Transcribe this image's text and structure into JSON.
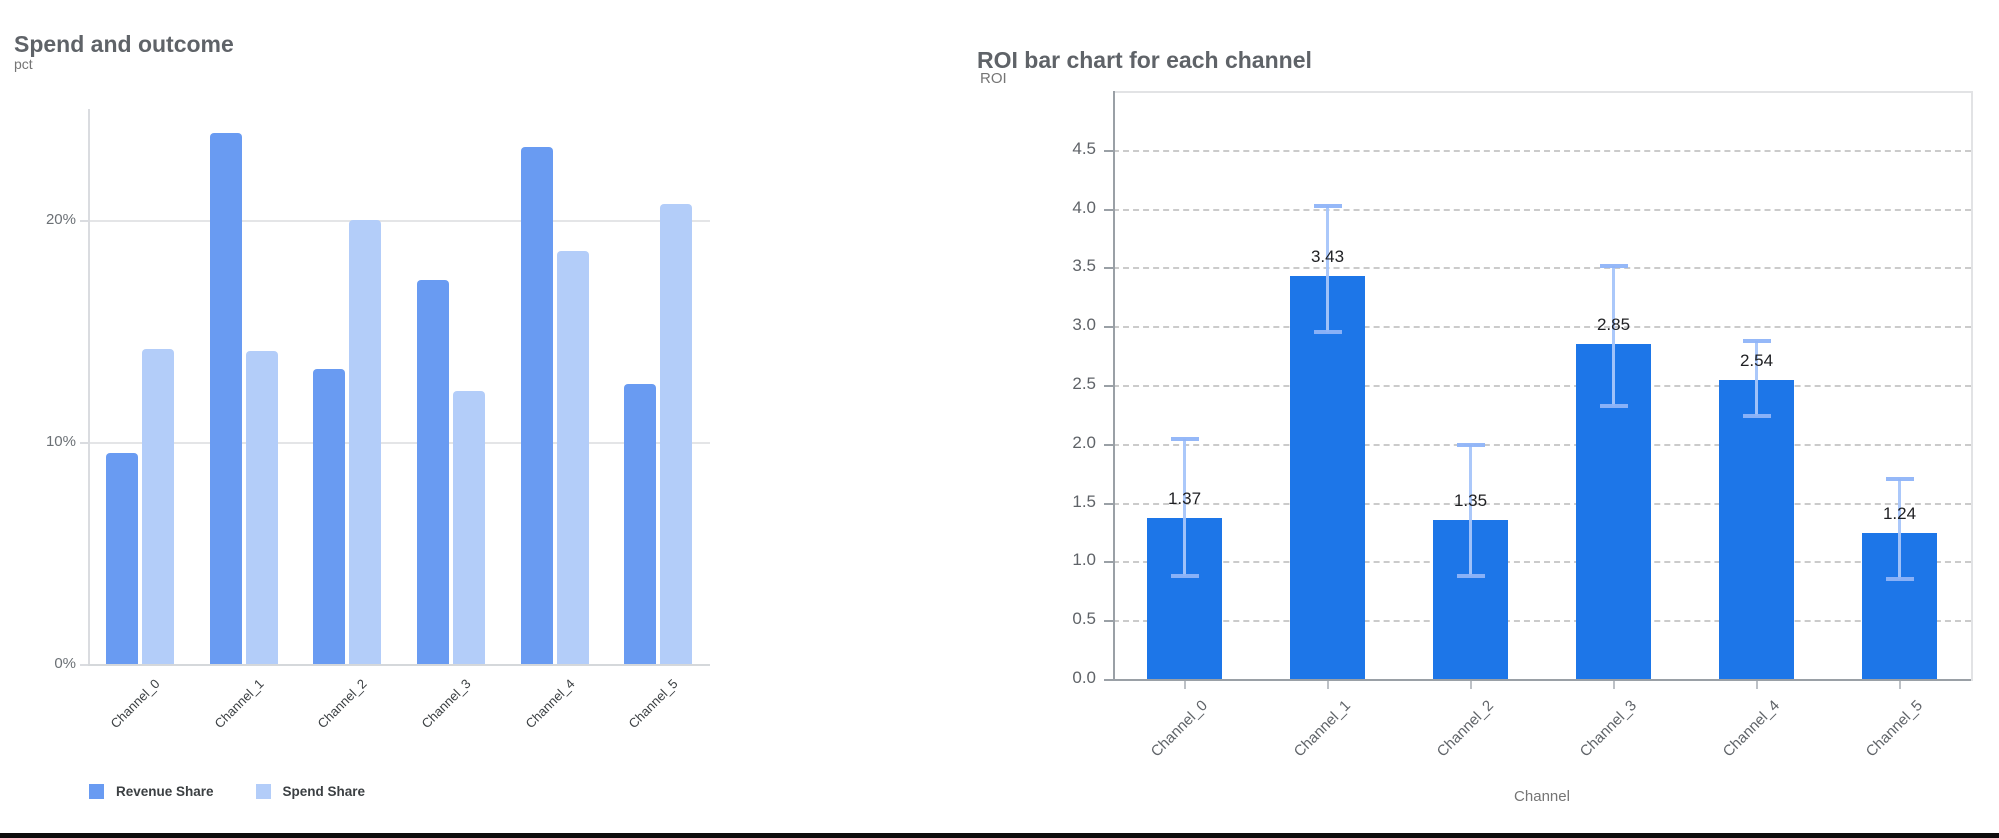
{
  "chart_data": [
    {
      "type": "bar",
      "title": "Spend and outcome",
      "ylabel": "pct",
      "xlabel": "",
      "categories": [
        "Channel_0",
        "Channel_1",
        "Channel_2",
        "Channel_3",
        "Channel_4",
        "Channel_5"
      ],
      "series": [
        {
          "name": "Revenue Share",
          "color": "#699bf2",
          "values": [
            9.5,
            23.9,
            13.3,
            17.3,
            23.3,
            12.6
          ]
        },
        {
          "name": "Spend Share",
          "color": "#b3cdf9",
          "values": [
            14.2,
            14.1,
            20.0,
            12.3,
            18.6,
            20.7
          ]
        }
      ],
      "ylim": [
        0,
        25
      ],
      "ytick_values": [
        0,
        10,
        20
      ],
      "ytick_labels": [
        "0%",
        "10%",
        "20%"
      ],
      "grid": "horizontal-solid",
      "legend_position": "bottom-left"
    },
    {
      "type": "bar",
      "title": "ROI bar chart for each channel",
      "ylabel": "ROI",
      "xlabel": "Channel",
      "categories": [
        "Channel_0",
        "Channel_1",
        "Channel_2",
        "Channel_3",
        "Channel_4",
        "Channel_5"
      ],
      "values": [
        1.37,
        3.43,
        1.35,
        2.85,
        2.54,
        1.24
      ],
      "value_labels": [
        "1.37",
        "3.43",
        "1.35",
        "2.85",
        "2.54",
        "1.24"
      ],
      "error_low": [
        0.88,
        2.95,
        0.88,
        2.32,
        2.24,
        0.85
      ],
      "error_high": [
        2.04,
        4.02,
        1.99,
        3.51,
        2.87,
        1.7
      ],
      "ylim": [
        0,
        5
      ],
      "ytick_values": [
        0,
        0.5,
        1,
        1.5,
        2,
        2.5,
        3,
        3.5,
        4,
        4.5
      ],
      "ytick_labels": [
        "0.0",
        "0.5",
        "1.0",
        "1.5",
        "2.0",
        "2.5",
        "3.0",
        "3.5",
        "4.0",
        "4.5"
      ],
      "bar_color": "#1d76e8",
      "error_color": "#a7c5fa",
      "error_cap_color": "#8fb4f8",
      "grid": "horizontal-dashed",
      "legend_position": "none"
    }
  ]
}
